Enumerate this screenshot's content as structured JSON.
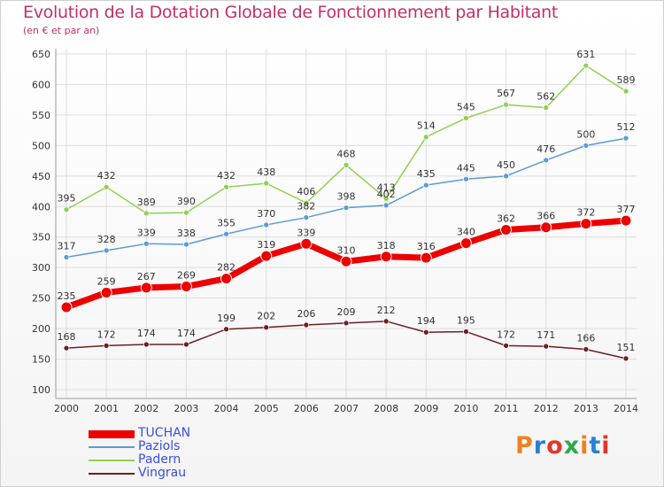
{
  "header": {
    "title": "Evolution de la Dotation Globale de Fonctionnement par Habitant",
    "subtitle": "(en € et par an)"
  },
  "logo": {
    "text": "Proxiti",
    "colors": [
      "#f08020",
      "#2a7fd4",
      "#e4352b",
      "#2fa84f",
      "#f08020",
      "#2a7fd4",
      "#e4352b"
    ]
  },
  "chart_data": {
    "type": "line",
    "categories": [
      "2000",
      "2001",
      "2002",
      "2003",
      "2004",
      "2005",
      "2006",
      "2007",
      "2008",
      "2009",
      "2010",
      "2011",
      "2012",
      "2013",
      "2014"
    ],
    "ylim": [
      100,
      650
    ],
    "yticks": [
      100,
      150,
      200,
      250,
      300,
      350,
      400,
      450,
      500,
      550,
      600,
      650
    ],
    "grid": true,
    "series": [
      {
        "name": "Padern",
        "color": "#8fd14f",
        "values": [
          395,
          432,
          389,
          390,
          432,
          438,
          406,
          468,
          413,
          514,
          545,
          567,
          562,
          631,
          589
        ]
      },
      {
        "name": "Paziols",
        "color": "#5b9bd5",
        "values": [
          317,
          328,
          339,
          338,
          355,
          370,
          382,
          398,
          402,
          435,
          445,
          450,
          476,
          500,
          512
        ]
      },
      {
        "name": "TUCHAN",
        "color": "#ee0000",
        "bold": true,
        "values": [
          235,
          259,
          267,
          269,
          282,
          319,
          339,
          310,
          318,
          316,
          340,
          362,
          366,
          372,
          377
        ]
      },
      {
        "name": "Vingrau",
        "color": "#6b1f23",
        "values": [
          168,
          172,
          174,
          174,
          199,
          202,
          206,
          209,
          212,
          194,
          195,
          172,
          171,
          166,
          151
        ]
      }
    ],
    "legend_order": [
      "TUCHAN",
      "Paziols",
      "Padern",
      "Vingrau"
    ],
    "legend_text_color": "#3b4fe0"
  }
}
